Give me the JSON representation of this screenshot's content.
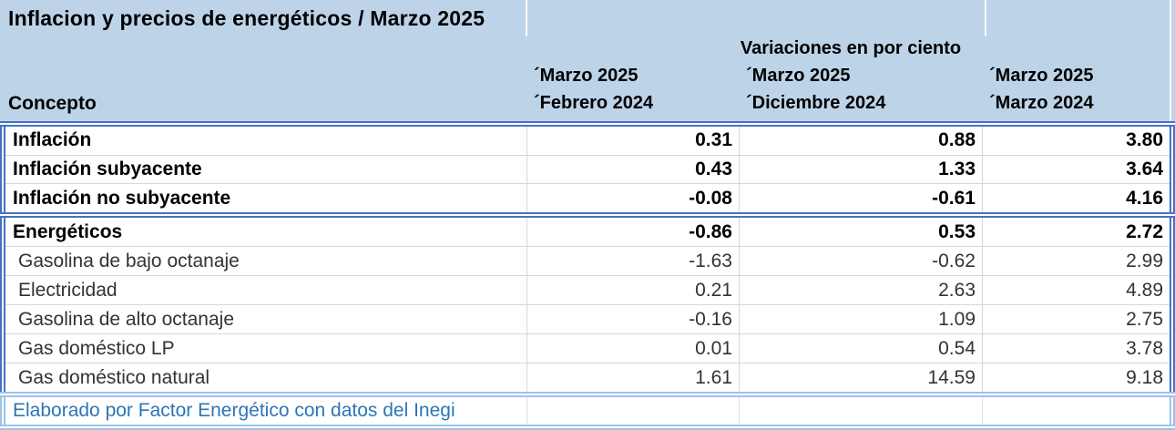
{
  "title": "Inflacion y precios de energéticos / Marzo 2025",
  "table": {
    "supheader": "Variaciones en por ciento",
    "concept_header": "Concepto",
    "columns": [
      {
        "line1": "´Marzo 2025",
        "line2": "´Febrero 2024"
      },
      {
        "line1": "´Marzo 2025",
        "line2": "´Diciembre 2024"
      },
      {
        "line1": "´Marzo 2025",
        "line2": "´Marzo 2024"
      }
    ],
    "groups": [
      {
        "name": "inflacion",
        "rows": [
          {
            "concept": "Inflación",
            "values": [
              "0.31",
              "0.88",
              "3.80"
            ],
            "bold": true
          },
          {
            "concept": "Inflación subyacente",
            "values": [
              "0.43",
              "1.33",
              "3.64"
            ],
            "bold": true
          },
          {
            "concept": "Inflación no subyacente",
            "values": [
              "-0.08",
              "-0.61",
              "4.16"
            ],
            "bold": true
          }
        ]
      },
      {
        "name": "energeticos",
        "rows": [
          {
            "concept": "Energéticos",
            "values": [
              "-0.86",
              "0.53",
              "2.72"
            ],
            "bold": true
          },
          {
            "concept": "Gasolina de bajo octanaje",
            "values": [
              "-1.63",
              "-0.62",
              "2.99"
            ],
            "bold": false
          },
          {
            "concept": "Electricidad",
            "values": [
              "0.21",
              "2.63",
              "4.89"
            ],
            "bold": false
          },
          {
            "concept": "Gasolina de alto octanaje",
            "values": [
              "-0.16",
              "1.09",
              "2.75"
            ],
            "bold": false
          },
          {
            "concept": "Gas doméstico LP",
            "values": [
              "0.01",
              "0.54",
              "3.78"
            ],
            "bold": false
          },
          {
            "concept": "Gas doméstico natural",
            "values": [
              "1.61",
              "14.59",
              "9.18"
            ],
            "bold": false
          }
        ]
      }
    ],
    "footer": "Elaborado por Factor Energético con datos del Inegi"
  },
  "colors": {
    "header_bg": "#BDD3E8",
    "group_border": "#4472C4",
    "footer_border": "#9DC3E6",
    "footer_text": "#2E75B6",
    "gridline": "#D7D7D7"
  }
}
